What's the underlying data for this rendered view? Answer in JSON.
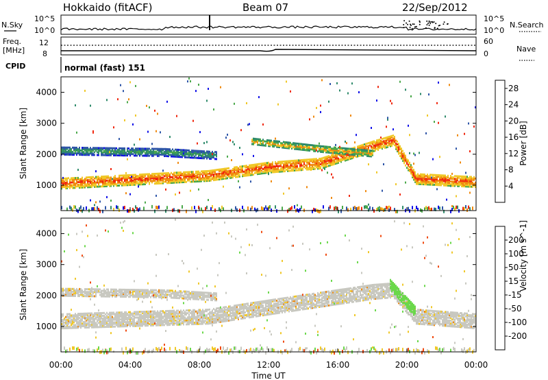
{
  "header": {
    "title": "Hokkaido (fitACF)",
    "beam": "Beam 07",
    "date": "22/Sep/2012"
  },
  "status_panel": {
    "nsky_label": "N.Sky",
    "nsearch_label": "N.Search",
    "nsky_ticks": [
      "10^5",
      "10^0"
    ],
    "nsearch_ticks": [
      "10^5",
      "10^0"
    ],
    "freq_label": "Freq.",
    "freq_unit": "[MHz]",
    "freq_ticks": [
      "12",
      "8"
    ],
    "nave_label": "Nave",
    "nave_ticks": [
      "60",
      "0"
    ],
    "cpid_label": "CPID",
    "cpid_value": "normal (fast) 151"
  },
  "chart_data": [
    {
      "type": "heatmap",
      "name": "power-panel",
      "xlabel": "",
      "ylabel": "Slant Range [km]",
      "xlim": [
        "00:00",
        "24:00"
      ],
      "ylim": [
        180,
        4500
      ],
      "yticks": [
        "1000",
        "2000",
        "3000",
        "4000"
      ],
      "colorbar": {
        "label": "Power [dB]",
        "ticks": [
          "4",
          "8",
          "12",
          "16",
          "20",
          "24",
          "28"
        ],
        "range": [
          0,
          30
        ],
        "colors": [
          "#1010e8",
          "#2e55a8",
          "#2e8a6a",
          "#4aa84a",
          "#f0c828",
          "#f08a10",
          "#f02810"
        ]
      },
      "bands": [
        {
          "x": [
            0,
            8.5,
            12,
            15,
            18,
            19.2,
            20.5,
            24
          ],
          "y_center": [
            1100,
            1350,
            1620,
            1750,
            2300,
            2500,
            1250,
            1150
          ],
          "thickness_km": 350,
          "value_db": 27
        },
        {
          "x": [
            0,
            6,
            9
          ],
          "y_center": [
            2150,
            2100,
            2000
          ],
          "thickness_km": 250,
          "value_db": 14
        },
        {
          "x": [
            11,
            15,
            18
          ],
          "y_center": [
            2450,
            2200,
            2050
          ],
          "thickness_km": 180,
          "value_db": 22
        }
      ]
    },
    {
      "type": "heatmap",
      "name": "velocity-panel",
      "xlabel": "Time UT",
      "ylabel": "Slant Range [km]",
      "xlim": [
        "00:00",
        "24:00"
      ],
      "ylim": [
        180,
        4500
      ],
      "yticks": [
        "1000",
        "2000",
        "3000",
        "4000"
      ],
      "xticks": [
        "00:00",
        "04:00",
        "08:00",
        "12:00",
        "16:00",
        "20:00",
        "00:00"
      ],
      "colorbar": {
        "label": "Velocity [m s^-1]",
        "ticks": [
          "200",
          "100",
          "50",
          "15",
          "-15",
          "-50",
          "-100",
          "-200"
        ],
        "colors": [
          "#1a2ab8",
          "#2a6aa0",
          "#3a9a3a",
          "#6ad84a",
          "#c8c8c0",
          "#f0c828",
          "#f08a10",
          "#f04a10",
          "#e81010"
        ]
      },
      "bands": [
        {
          "x": [
            0,
            8.5,
            12,
            15,
            18,
            19.2,
            20.5,
            24
          ],
          "y_center": [
            1200,
            1350,
            1650,
            1900,
            2150,
            2200,
            1350,
            1200
          ],
          "thickness_km": 450,
          "value_ms": 0
        },
        {
          "x": [
            0,
            6,
            9
          ],
          "y_center": [
            2150,
            2100,
            2000
          ],
          "thickness_km": 250,
          "value_ms": 0
        },
        {
          "x": [
            19,
            20.5
          ],
          "y_center": [
            2400,
            1500
          ],
          "thickness_km": 350,
          "value_ms": 60
        }
      ]
    }
  ],
  "colors": {
    "axis": "#000000",
    "grey_scatter": "#c8c8c0"
  }
}
